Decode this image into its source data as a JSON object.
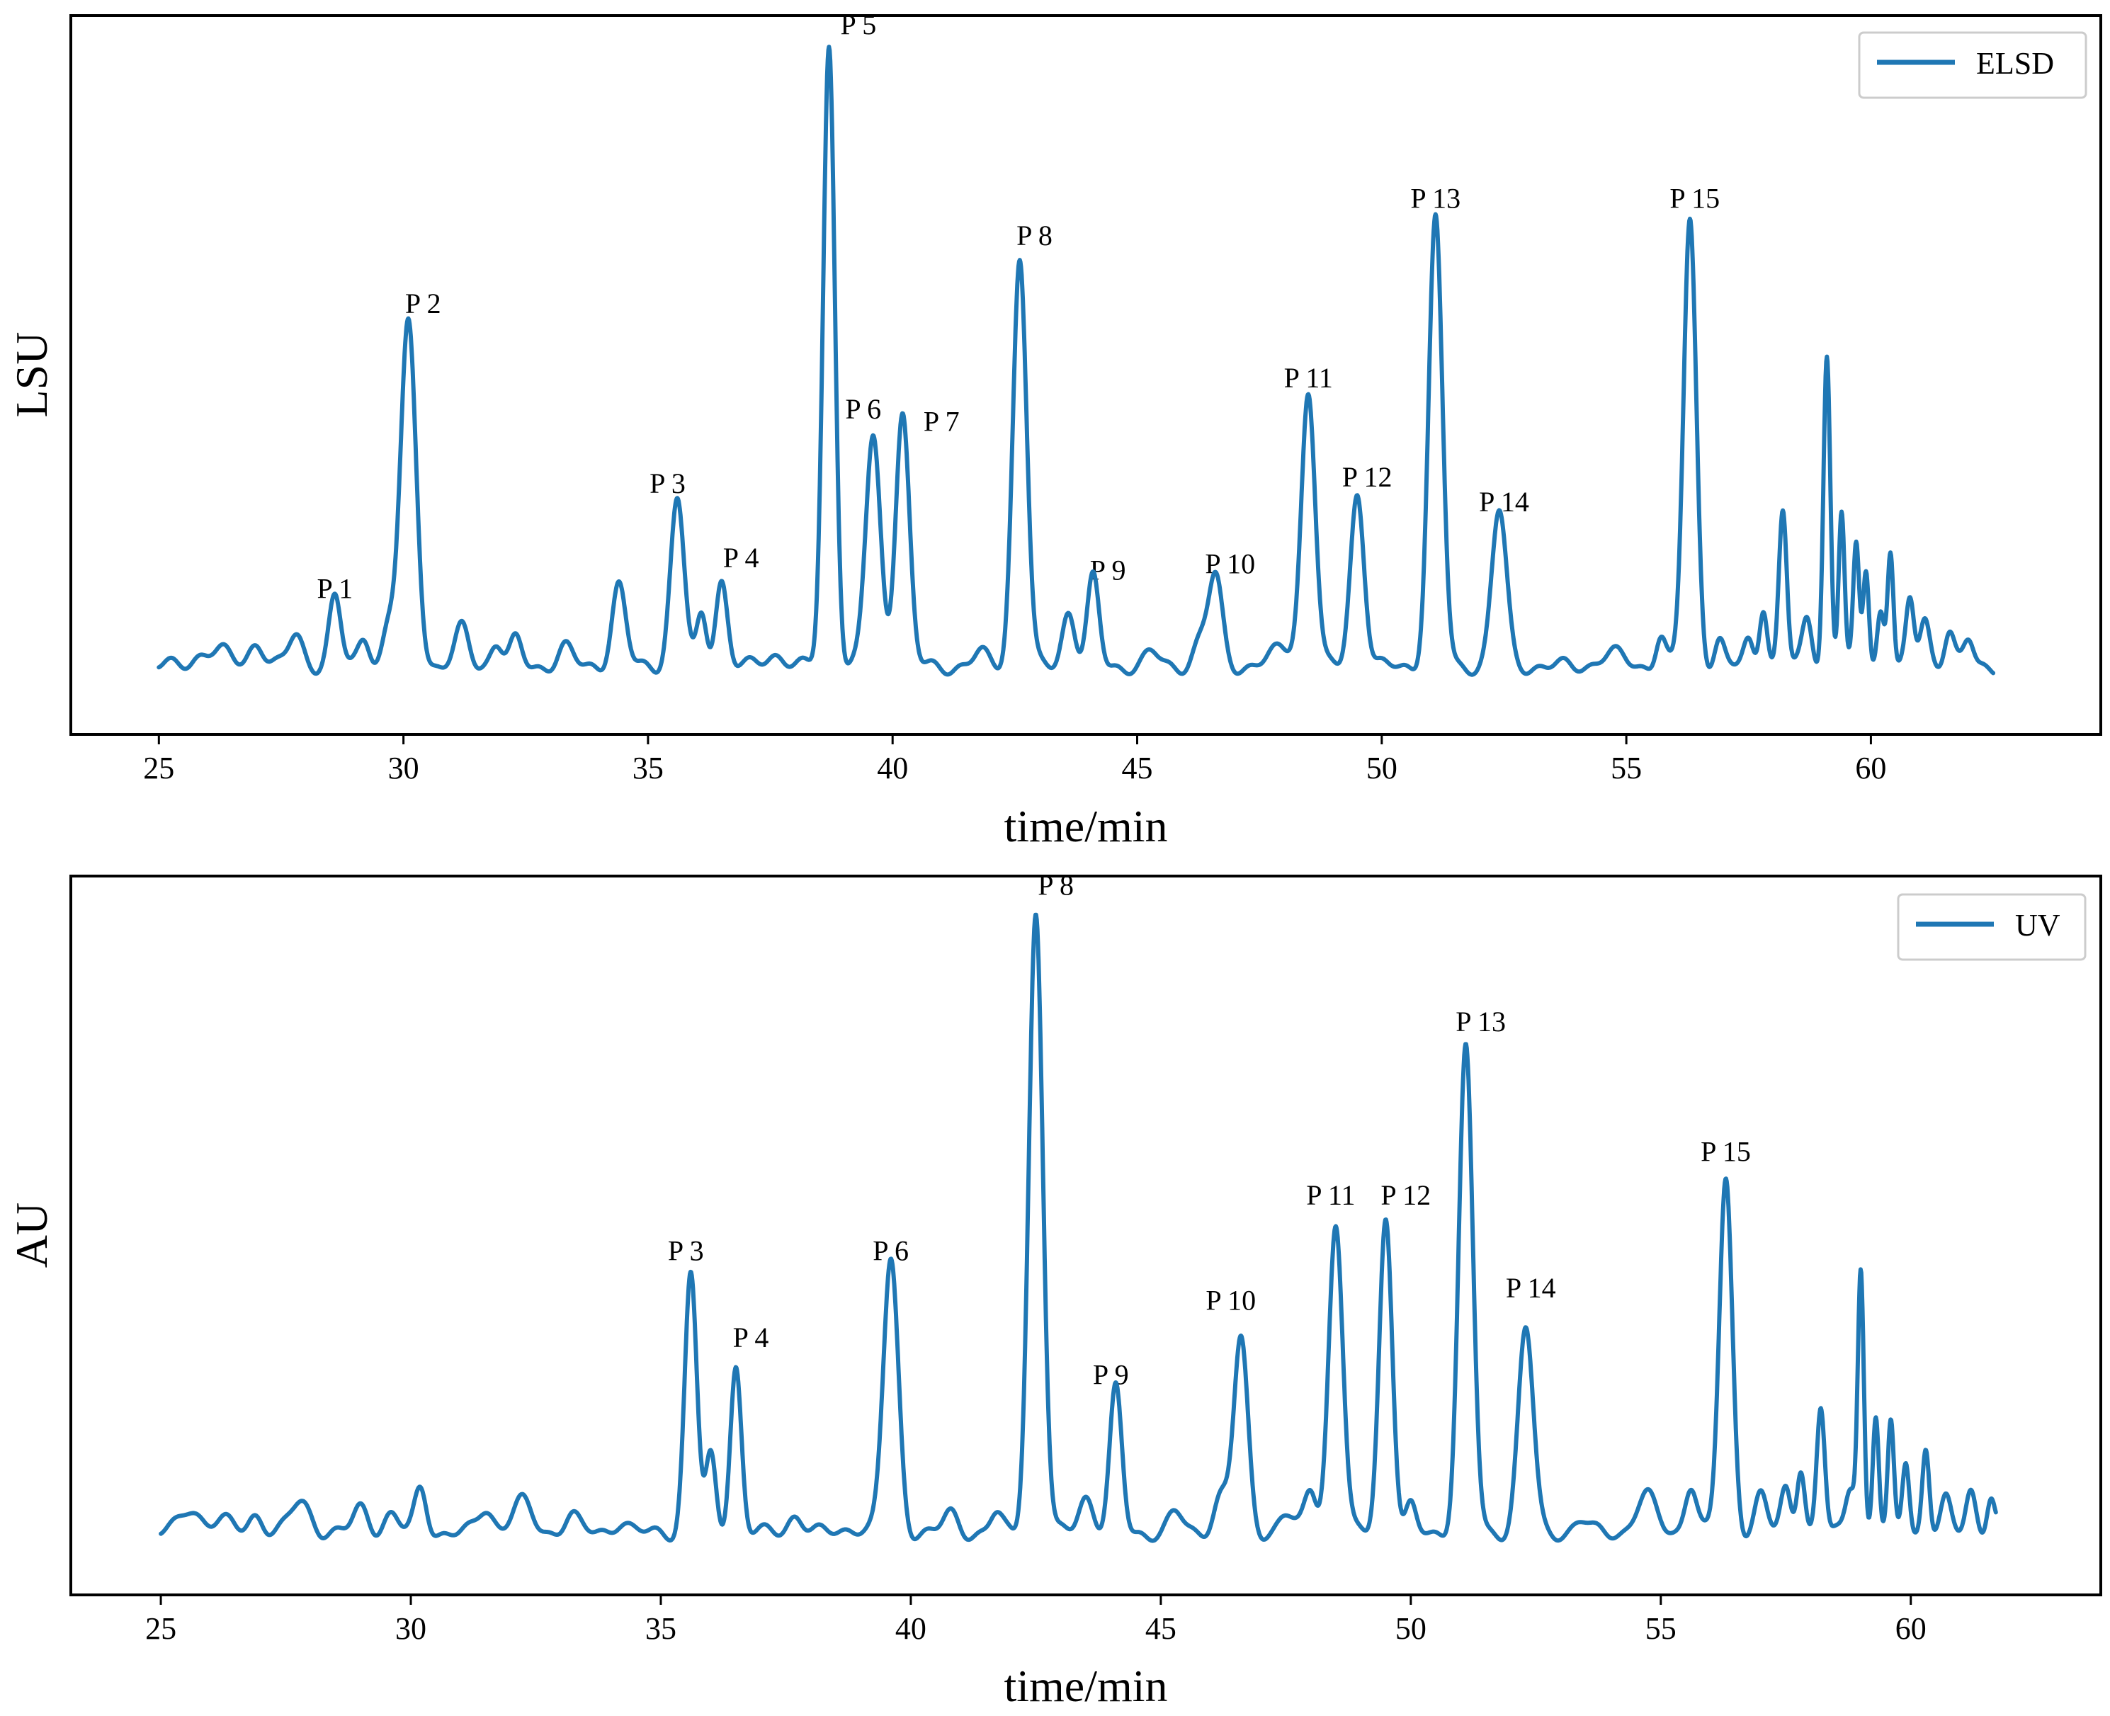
{
  "chart_data": [
    {
      "type": "line",
      "id": "elsd",
      "xlabel": "time/min",
      "ylabel": "LSU",
      "xlim": [
        23.2,
        64.7
      ],
      "ylim": [
        -0.08,
        1.08
      ],
      "xticks": [
        25,
        30,
        35,
        40,
        45,
        50,
        55,
        60
      ],
      "yticks_shown": false,
      "color": "#1f77b4",
      "legend": {
        "label": "ELSD",
        "position": "top-right"
      },
      "x_range": [
        25.0,
        62.5
      ],
      "baseline": 0.03,
      "peaks": [
        {
          "t": 25.9,
          "h": 0.02,
          "w": 0.2
        },
        {
          "t": 26.3,
          "h": 0.02,
          "w": 0.2
        },
        {
          "t": 27.0,
          "h": 0.04,
          "w": 0.15
        },
        {
          "t": 27.8,
          "h": 0.05,
          "w": 0.15
        },
        {
          "t": 28.6,
          "h": 0.11,
          "w": 0.12
        },
        {
          "t": 29.2,
          "h": 0.05,
          "w": 0.12
        },
        {
          "t": 29.7,
          "h": 0.06,
          "w": 0.12
        },
        {
          "t": 30.1,
          "h": 0.55,
          "w": 0.16
        },
        {
          "t": 31.2,
          "h": 0.06,
          "w": 0.14
        },
        {
          "t": 31.9,
          "h": 0.04,
          "w": 0.12
        },
        {
          "t": 32.3,
          "h": 0.04,
          "w": 0.12
        },
        {
          "t": 33.3,
          "h": 0.03,
          "w": 0.15
        },
        {
          "t": 34.4,
          "h": 0.13,
          "w": 0.14
        },
        {
          "t": 35.6,
          "h": 0.27,
          "w": 0.14
        },
        {
          "t": 36.1,
          "h": 0.08,
          "w": 0.1
        },
        {
          "t": 36.5,
          "h": 0.14,
          "w": 0.12
        },
        {
          "t": 37.6,
          "h": 0.02,
          "w": 0.2
        },
        {
          "t": 38.7,
          "h": 1.0,
          "w": 0.12
        },
        {
          "t": 39.6,
          "h": 0.37,
          "w": 0.15
        },
        {
          "t": 40.2,
          "h": 0.41,
          "w": 0.14
        },
        {
          "t": 41.8,
          "h": 0.02,
          "w": 0.15
        },
        {
          "t": 42.6,
          "h": 0.66,
          "w": 0.14
        },
        {
          "t": 43.6,
          "h": 0.09,
          "w": 0.13
        },
        {
          "t": 44.1,
          "h": 0.14,
          "w": 0.12
        },
        {
          "t": 45.3,
          "h": 0.02,
          "w": 0.15
        },
        {
          "t": 46.3,
          "h": 0.04,
          "w": 0.15
        },
        {
          "t": 46.6,
          "h": 0.14,
          "w": 0.14
        },
        {
          "t": 48.0,
          "h": 0.03,
          "w": 0.25
        },
        {
          "t": 48.5,
          "h": 0.44,
          "w": 0.14
        },
        {
          "t": 49.5,
          "h": 0.28,
          "w": 0.14
        },
        {
          "t": 51.1,
          "h": 0.72,
          "w": 0.14
        },
        {
          "t": 52.4,
          "h": 0.25,
          "w": 0.15
        },
        {
          "t": 54.7,
          "h": 0.02,
          "w": 0.25
        },
        {
          "t": 55.7,
          "h": 0.05,
          "w": 0.1
        },
        {
          "t": 56.3,
          "h": 0.72,
          "w": 0.13
        },
        {
          "t": 56.9,
          "h": 0.04,
          "w": 0.1
        },
        {
          "t": 57.5,
          "h": 0.04,
          "w": 0.1
        },
        {
          "t": 57.8,
          "h": 0.1,
          "w": 0.08
        },
        {
          "t": 58.2,
          "h": 0.25,
          "w": 0.08
        },
        {
          "t": 58.7,
          "h": 0.08,
          "w": 0.1
        },
        {
          "t": 59.1,
          "h": 0.5,
          "w": 0.07
        },
        {
          "t": 59.4,
          "h": 0.25,
          "w": 0.06
        },
        {
          "t": 59.7,
          "h": 0.19,
          "w": 0.06
        },
        {
          "t": 59.9,
          "h": 0.16,
          "w": 0.06
        },
        {
          "t": 60.2,
          "h": 0.09,
          "w": 0.07
        },
        {
          "t": 60.4,
          "h": 0.19,
          "w": 0.06
        },
        {
          "t": 60.8,
          "h": 0.1,
          "w": 0.08
        },
        {
          "t": 61.1,
          "h": 0.08,
          "w": 0.1
        },
        {
          "t": 61.6,
          "h": 0.06,
          "w": 0.1
        },
        {
          "t": 62.0,
          "h": 0.04,
          "w": 0.1
        }
      ],
      "annotations": [
        {
          "text": "P 1",
          "t": 28.6,
          "y": 0.14
        },
        {
          "text": "P 2",
          "t": 30.4,
          "y": 0.6
        },
        {
          "text": "P 3",
          "t": 35.4,
          "y": 0.31
        },
        {
          "text": "P 4",
          "t": 36.9,
          "y": 0.19
        },
        {
          "text": "P 5",
          "t": 39.3,
          "y": 1.05
        },
        {
          "text": "P 6",
          "t": 39.4,
          "y": 0.43
        },
        {
          "text": "P 7",
          "t": 41.0,
          "y": 0.41
        },
        {
          "text": "P 8",
          "t": 42.9,
          "y": 0.71
        },
        {
          "text": "P 9",
          "t": 44.4,
          "y": 0.17
        },
        {
          "text": "P 10",
          "t": 46.9,
          "y": 0.18
        },
        {
          "text": "P 11",
          "t": 48.5,
          "y": 0.48
        },
        {
          "text": "P 12",
          "t": 49.7,
          "y": 0.32
        },
        {
          "text": "P 13",
          "t": 51.1,
          "y": 0.77
        },
        {
          "text": "P 14",
          "t": 52.5,
          "y": 0.28
        },
        {
          "text": "P 15",
          "t": 56.4,
          "y": 0.77
        }
      ]
    },
    {
      "type": "line",
      "id": "uv",
      "xlabel": "time/min",
      "ylabel": "AU",
      "xlim": [
        23.2,
        63.8
      ],
      "ylim": [
        -0.08,
        1.08
      ],
      "xticks": [
        25,
        30,
        35,
        40,
        45,
        50,
        55,
        60
      ],
      "yticks_shown": false,
      "color": "#1f77b4",
      "legend": {
        "label": "UV",
        "position": "top-right"
      },
      "x_range": [
        25.0,
        61.7
      ],
      "baseline": 0.02,
      "peaks": [
        {
          "t": 25.6,
          "h": 0.04,
          "w": 0.2
        },
        {
          "t": 26.2,
          "h": 0.02,
          "w": 0.2
        },
        {
          "t": 26.9,
          "h": 0.03,
          "w": 0.15
        },
        {
          "t": 27.8,
          "h": 0.05,
          "w": 0.2
        },
        {
          "t": 29.0,
          "h": 0.04,
          "w": 0.15
        },
        {
          "t": 29.6,
          "h": 0.03,
          "w": 0.15
        },
        {
          "t": 30.2,
          "h": 0.07,
          "w": 0.12
        },
        {
          "t": 31.5,
          "h": 0.04,
          "w": 0.15
        },
        {
          "t": 32.2,
          "h": 0.05,
          "w": 0.2
        },
        {
          "t": 33.2,
          "h": 0.03,
          "w": 0.15
        },
        {
          "t": 34.2,
          "h": 0.02,
          "w": 0.15
        },
        {
          "t": 35.6,
          "h": 0.42,
          "w": 0.12
        },
        {
          "t": 36.0,
          "h": 0.12,
          "w": 0.1
        },
        {
          "t": 36.5,
          "h": 0.27,
          "w": 0.11
        },
        {
          "t": 37.7,
          "h": 0.03,
          "w": 0.15
        },
        {
          "t": 38.9,
          "h": 0.01,
          "w": 0.2
        },
        {
          "t": 39.6,
          "h": 0.44,
          "w": 0.15
        },
        {
          "t": 40.8,
          "h": 0.03,
          "w": 0.15
        },
        {
          "t": 41.7,
          "h": 0.03,
          "w": 0.12
        },
        {
          "t": 42.5,
          "h": 1.0,
          "w": 0.14
        },
        {
          "t": 43.5,
          "h": 0.06,
          "w": 0.15
        },
        {
          "t": 44.1,
          "h": 0.23,
          "w": 0.12
        },
        {
          "t": 45.3,
          "h": 0.03,
          "w": 0.15
        },
        {
          "t": 46.2,
          "h": 0.06,
          "w": 0.15
        },
        {
          "t": 46.6,
          "h": 0.31,
          "w": 0.14
        },
        {
          "t": 47.5,
          "h": 0.03,
          "w": 0.15
        },
        {
          "t": 48.0,
          "h": 0.07,
          "w": 0.12
        },
        {
          "t": 48.5,
          "h": 0.5,
          "w": 0.14
        },
        {
          "t": 49.5,
          "h": 0.51,
          "w": 0.13
        },
        {
          "t": 50.0,
          "h": 0.04,
          "w": 0.1
        },
        {
          "t": 51.1,
          "h": 0.78,
          "w": 0.14
        },
        {
          "t": 52.3,
          "h": 0.33,
          "w": 0.15
        },
        {
          "t": 53.4,
          "h": 0.02,
          "w": 0.15
        },
        {
          "t": 54.7,
          "h": 0.06,
          "w": 0.2
        },
        {
          "t": 55.6,
          "h": 0.08,
          "w": 0.12
        },
        {
          "t": 56.3,
          "h": 0.57,
          "w": 0.13
        },
        {
          "t": 57.0,
          "h": 0.06,
          "w": 0.12
        },
        {
          "t": 57.5,
          "h": 0.07,
          "w": 0.1
        },
        {
          "t": 57.8,
          "h": 0.11,
          "w": 0.08
        },
        {
          "t": 58.2,
          "h": 0.2,
          "w": 0.08
        },
        {
          "t": 58.8,
          "h": 0.08,
          "w": 0.1
        },
        {
          "t": 59.0,
          "h": 0.42,
          "w": 0.06
        },
        {
          "t": 59.3,
          "h": 0.19,
          "w": 0.06
        },
        {
          "t": 59.6,
          "h": 0.17,
          "w": 0.06
        },
        {
          "t": 59.9,
          "h": 0.12,
          "w": 0.07
        },
        {
          "t": 60.3,
          "h": 0.14,
          "w": 0.07
        },
        {
          "t": 60.7,
          "h": 0.05,
          "w": 0.1
        },
        {
          "t": 61.2,
          "h": 0.07,
          "w": 0.1
        },
        {
          "t": 61.6,
          "h": 0.06,
          "w": 0.08
        }
      ],
      "annotations": [
        {
          "text": "P 3",
          "t": 35.5,
          "y": 0.46
        },
        {
          "text": "P 4",
          "t": 36.8,
          "y": 0.32
        },
        {
          "text": "P 6",
          "t": 39.6,
          "y": 0.46
        },
        {
          "text": "P 8",
          "t": 42.9,
          "y": 1.05
        },
        {
          "text": "P 9",
          "t": 44.0,
          "y": 0.26
        },
        {
          "text": "P 10",
          "t": 46.4,
          "y": 0.38
        },
        {
          "text": "P 11",
          "t": 48.4,
          "y": 0.55
        },
        {
          "text": "P 12",
          "t": 49.9,
          "y": 0.55
        },
        {
          "text": "P 13",
          "t": 51.4,
          "y": 0.83
        },
        {
          "text": "P 14",
          "t": 52.4,
          "y": 0.4
        },
        {
          "text": "P 15",
          "t": 56.3,
          "y": 0.62
        }
      ]
    }
  ]
}
